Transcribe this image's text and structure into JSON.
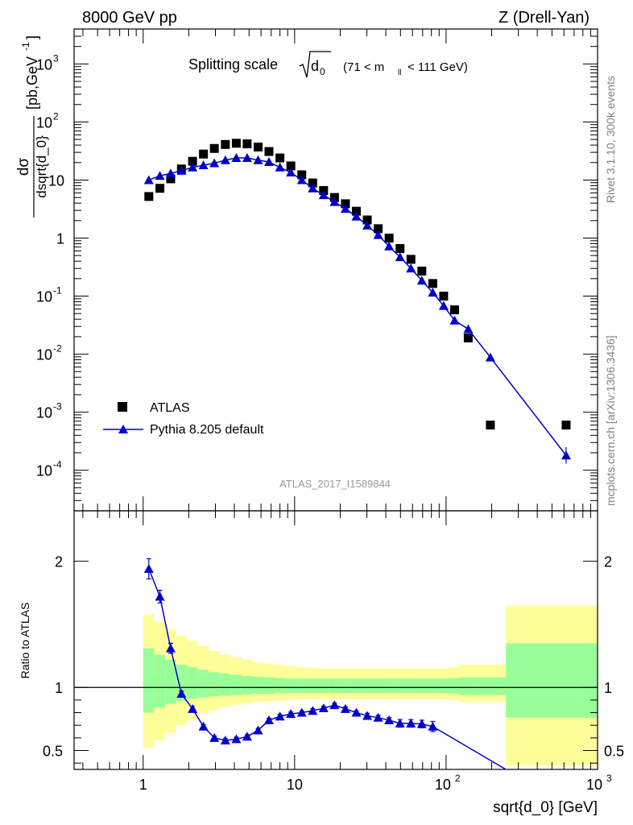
{
  "header": {
    "left": "8000 GeV pp",
    "right": "Z (Drell-Yan)"
  },
  "side_labels": {
    "top": "Rivet 3.1.10,  300k events",
    "bottom": "mcplots.cern.ch [arXiv:1306.3436]"
  },
  "colors": {
    "data": "#000000",
    "mc": "#0000cc",
    "band_stat": "#99ff99",
    "band_tot": "#ffff99",
    "grid": "#000000",
    "side_text": "#808080",
    "watermark": "#999999"
  },
  "chart_data": [
    {
      "type": "scatter",
      "title": "Splitting scale",
      "title_symbol": "√d",
      "title_symbol_sub": "0",
      "title_range": "(71 < m",
      "title_range_sub": "ll",
      "title_range_end": " < 111 GeV)",
      "ylabel_num": "dσ",
      "ylabel_den": "dsqrt{d_0}",
      "ylabel_unit": "[pb,GeV",
      "ylabel_unit_sup": "-1",
      "ylabel_unit_end": "]",
      "xscale": "log",
      "yscale": "log",
      "xlim": [
        0.35,
        1000
      ],
      "ylim": [
        2e-05,
        4000
      ],
      "y_ticks": [
        {
          "value": 0.0001,
          "base": "10",
          "exp": "-4"
        },
        {
          "value": 0.001,
          "base": "10",
          "exp": "-3"
        },
        {
          "value": 0.01,
          "base": "10",
          "exp": "-2"
        },
        {
          "value": 0.1,
          "base": "10",
          "exp": "-1"
        },
        {
          "value": 1,
          "base": "1",
          "exp": ""
        },
        {
          "value": 10,
          "base": "10",
          "exp": ""
        },
        {
          "value": 100,
          "base": "10",
          "exp": "2"
        },
        {
          "value": 1000,
          "base": "10",
          "exp": "3"
        }
      ],
      "watermark": "ATLAS_2017_I1589844",
      "legend_position": "bottom-left",
      "series": [
        {
          "name": "ATLAS",
          "marker": "square",
          "x": [
            1.09,
            1.29,
            1.52,
            1.79,
            2.12,
            2.5,
            2.95,
            3.49,
            4.12,
            4.86,
            5.74,
            6.77,
            8.0,
            9.44,
            11.15,
            13.16,
            15.53,
            18.34,
            21.65,
            25.55,
            30.17,
            35.61,
            42.04,
            49.63,
            58.59,
            69.17,
            81.66,
            96.4,
            113.8,
            140.0,
            196.0,
            620.0
          ],
          "y": [
            5.2,
            7.2,
            10.5,
            15.5,
            21,
            28,
            35,
            41,
            43,
            42,
            37,
            31,
            24,
            17.5,
            12.3,
            8.9,
            6.6,
            5.0,
            3.9,
            2.9,
            2.05,
            1.45,
            1.0,
            0.66,
            0.43,
            0.27,
            0.165,
            0.1,
            0.058,
            0.019,
            0.0006,
            0.0006
          ]
        },
        {
          "name": "Pythia 8.205 default",
          "marker": "triangle",
          "x": [
            1.09,
            1.29,
            1.52,
            1.79,
            2.12,
            2.5,
            2.95,
            3.49,
            4.12,
            4.86,
            5.74,
            6.77,
            8.0,
            9.44,
            11.15,
            13.16,
            15.53,
            18.34,
            21.65,
            25.55,
            30.17,
            35.61,
            42.04,
            49.63,
            58.59,
            69.17,
            81.66,
            96.4,
            113.8,
            140.0,
            196.0,
            620.0
          ],
          "y": [
            10,
            11.8,
            13,
            14.5,
            16.5,
            18,
            19.5,
            22,
            24,
            24,
            22,
            20.5,
            16.5,
            13.5,
            10,
            7.2,
            5.5,
            4.2,
            3.2,
            2.35,
            1.65,
            1.13,
            0.72,
            0.47,
            0.3,
            0.185,
            0.115,
            0.068,
            0.038,
            0.027,
            0.0088,
            0.00018
          ]
        }
      ]
    },
    {
      "type": "scatter",
      "ylabel": "Ratio to ATLAS",
      "xlabel": "sqrt{d_0} [GeV]",
      "xscale": "log",
      "xlim": [
        0.35,
        1000
      ],
      "ylim": [
        0.35,
        2.4
      ],
      "y_ticks": [
        0.5,
        1,
        2
      ],
      "x_ticks": [
        {
          "value": 1,
          "base": "1",
          "exp": ""
        },
        {
          "value": 10,
          "base": "10",
          "exp": ""
        },
        {
          "value": 100,
          "base": "10",
          "exp": "2"
        },
        {
          "value": 1000,
          "base": "10",
          "exp": "3"
        }
      ],
      "bands": {
        "edges": [
          1.0,
          1.18,
          1.4,
          1.65,
          1.95,
          2.3,
          2.72,
          3.2,
          3.78,
          4.46,
          5.27,
          6.22,
          7.34,
          8.67,
          10.2,
          12.1,
          14.3,
          16.8,
          19.9,
          23.5,
          27.7,
          32.7,
          38.6,
          45.6,
          53.8,
          63.5,
          75.0,
          88.5,
          104.5,
          123.3,
          155.0,
          248.0,
          1000.0
        ],
        "tot_low": [
          0.52,
          0.58,
          0.64,
          0.7,
          0.75,
          0.79,
          0.82,
          0.845,
          0.86,
          0.875,
          0.885,
          0.89,
          0.895,
          0.9,
          0.905,
          0.905,
          0.905,
          0.905,
          0.905,
          0.905,
          0.905,
          0.905,
          0.905,
          0.905,
          0.905,
          0.905,
          0.905,
          0.905,
          0.9,
          0.885,
          0.885,
          0.38
        ],
        "tot_high": [
          1.58,
          1.52,
          1.46,
          1.41,
          1.37,
          1.33,
          1.29,
          1.26,
          1.24,
          1.22,
          1.2,
          1.19,
          1.18,
          1.17,
          1.16,
          1.155,
          1.15,
          1.15,
          1.15,
          1.15,
          1.15,
          1.15,
          1.15,
          1.15,
          1.15,
          1.15,
          1.15,
          1.15,
          1.16,
          1.18,
          1.18,
          1.65
        ],
        "stat_low": [
          0.8,
          0.84,
          0.87,
          0.89,
          0.91,
          0.92,
          0.93,
          0.935,
          0.94,
          0.945,
          0.95,
          0.95,
          0.955,
          0.955,
          0.955,
          0.955,
          0.955,
          0.955,
          0.955,
          0.955,
          0.955,
          0.955,
          0.955,
          0.955,
          0.955,
          0.955,
          0.955,
          0.955,
          0.95,
          0.94,
          0.94,
          0.76
        ],
        "stat_high": [
          1.31,
          1.26,
          1.22,
          1.18,
          1.16,
          1.14,
          1.12,
          1.11,
          1.1,
          1.09,
          1.085,
          1.08,
          1.075,
          1.07,
          1.07,
          1.07,
          1.07,
          1.07,
          1.07,
          1.07,
          1.07,
          1.07,
          1.07,
          1.07,
          1.07,
          1.07,
          1.07,
          1.07,
          1.075,
          1.08,
          1.08,
          1.35
        ]
      },
      "series": [
        {
          "name": "Pythia 8.205 default / ATLAS",
          "x": [
            1.09,
            1.29,
            1.52,
            1.79,
            2.12,
            2.5,
            2.95,
            3.49,
            4.12,
            4.86,
            5.74,
            6.77,
            8.0,
            9.44,
            11.15,
            13.16,
            15.53,
            18.34,
            21.65,
            25.55,
            30.17,
            35.61,
            42.04,
            49.63,
            58.59,
            69.17,
            81.66
          ],
          "y": [
            1.94,
            1.72,
            1.31,
            0.95,
            0.83,
            0.69,
            0.6,
            0.58,
            0.59,
            0.61,
            0.66,
            0.74,
            0.77,
            0.79,
            0.8,
            0.815,
            0.835,
            0.86,
            0.83,
            0.8,
            0.775,
            0.76,
            0.74,
            0.715,
            0.715,
            0.71,
            0.69
          ],
          "err": [
            0.08,
            0.05,
            0.04,
            0.02,
            0.02,
            0.015,
            0.015,
            0.015,
            0.015,
            0.015,
            0.015,
            0.015,
            0.015,
            0.015,
            0.015,
            0.015,
            0.015,
            0.015,
            0.015,
            0.015,
            0.02,
            0.02,
            0.02,
            0.03,
            0.03,
            0.03,
            0.04
          ],
          "line_tail": {
            "x": [
              81.66,
              248.0
            ],
            "y": [
              0.69,
              0.35
            ]
          }
        }
      ]
    }
  ]
}
